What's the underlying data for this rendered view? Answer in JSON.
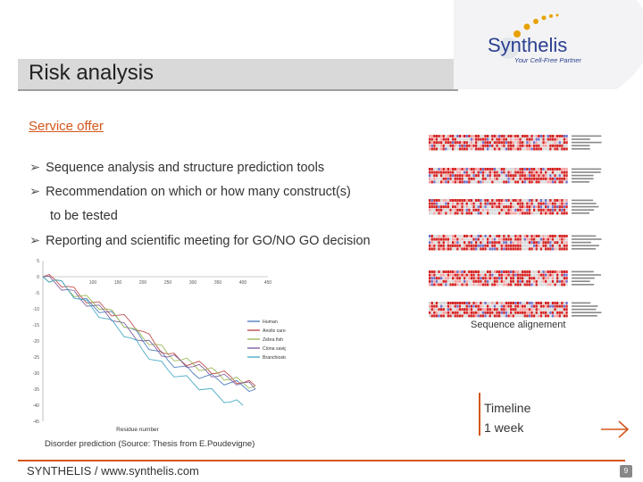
{
  "slide": {
    "title": "Risk analysis",
    "section_heading": "Service offer",
    "bullets": [
      "Sequence analysis and structure prediction tools",
      "Recommendation on which or how many construct(s)",
      "to be tested",
      "Reporting and scientific meeting for GO/NO GO decision"
    ],
    "bullet_icon": "arrow-bullet-icon"
  },
  "logo": {
    "name": "Synthelis",
    "tagline": "Your Cell-Free Partner",
    "colors": {
      "primary": "#2a3f8f",
      "accent": "#e8a200"
    }
  },
  "figures": {
    "disorder_caption": "Disorder prediction (Source: Thesis from E.Poudevigne)",
    "alignment_caption": "Sequence alignement"
  },
  "timeline": {
    "label_line1": "Timeline",
    "label_line2": "1 week"
  },
  "footer": {
    "text": "SYNTHELIS / www.synthelis.com",
    "page": "9"
  },
  "colors": {
    "accent": "#d4561c",
    "title_bar": "#d9d9d9"
  },
  "chart_data": {
    "type": "line",
    "xlabel": "Residue number",
    "ylabel": "",
    "x_ticks": [
      "100",
      "150",
      "200",
      "250",
      "300",
      "350",
      "400",
      "450"
    ],
    "y_ticks": [
      "5",
      "0",
      "-5",
      "-10",
      "-15",
      "-20",
      "-25",
      "-30",
      "-35",
      "-40",
      "-45"
    ],
    "xlim": [
      0,
      450
    ],
    "ylim": [
      -45,
      5
    ],
    "legend_position": "right",
    "series": [
      {
        "name": "Human",
        "color": "#4f81bd",
        "x": [
          0,
          25,
          50,
          75,
          100,
          125,
          150,
          175,
          200,
          225,
          250,
          275,
          300,
          325,
          350,
          375,
          400,
          425
        ],
        "y": [
          0,
          -1,
          -4,
          -7,
          -9,
          -11,
          -13,
          -16,
          -20,
          -23,
          -26,
          -28,
          -30,
          -31,
          -32,
          -33,
          -34,
          -35
        ]
      },
      {
        "name": "Anolis carolinensis",
        "color": "#c0504d",
        "x": [
          0,
          25,
          50,
          75,
          100,
          125,
          150,
          175,
          200,
          225,
          250,
          275,
          300,
          325,
          350,
          375,
          400,
          425
        ],
        "y": [
          0,
          -1,
          -3,
          -6,
          -8,
          -10,
          -12,
          -14,
          -17,
          -21,
          -24,
          -26,
          -27,
          -28,
          -30,
          -31,
          -33,
          -34
        ]
      },
      {
        "name": "Zebra fish",
        "color": "#9bbb59",
        "x": [
          0,
          25,
          50,
          75,
          100,
          125,
          150,
          175,
          200,
          225,
          250,
          275,
          300,
          325,
          350,
          375,
          400,
          425
        ],
        "y": [
          0,
          -1,
          -4,
          -6,
          -8,
          -10,
          -13,
          -16,
          -19,
          -21,
          -24,
          -26,
          -27,
          -29,
          -30,
          -32,
          -33,
          -34
        ]
      },
      {
        "name": "Ciona savignyi",
        "color": "#8064a2",
        "x": [
          0,
          25,
          50,
          75,
          100,
          125,
          150,
          175,
          200,
          225,
          250,
          275,
          300,
          325,
          350,
          375,
          400,
          425
        ],
        "y": [
          0,
          -2,
          -4,
          -7,
          -9,
          -11,
          -14,
          -17,
          -20,
          -22,
          -25,
          -26,
          -28,
          -29,
          -31,
          -32,
          -33,
          -35
        ]
      },
      {
        "name": "Branchiostoma floridae",
        "color": "#4bacc6",
        "x": [
          0,
          25,
          50,
          75,
          100,
          125,
          150,
          175,
          200,
          225,
          250,
          275,
          300,
          325,
          350,
          375,
          400
        ],
        "y": [
          0,
          -1,
          -4,
          -7,
          -10,
          -13,
          -16,
          -19,
          -23,
          -26,
          -29,
          -31,
          -33,
          -35,
          -37,
          -39,
          -40
        ]
      }
    ]
  }
}
